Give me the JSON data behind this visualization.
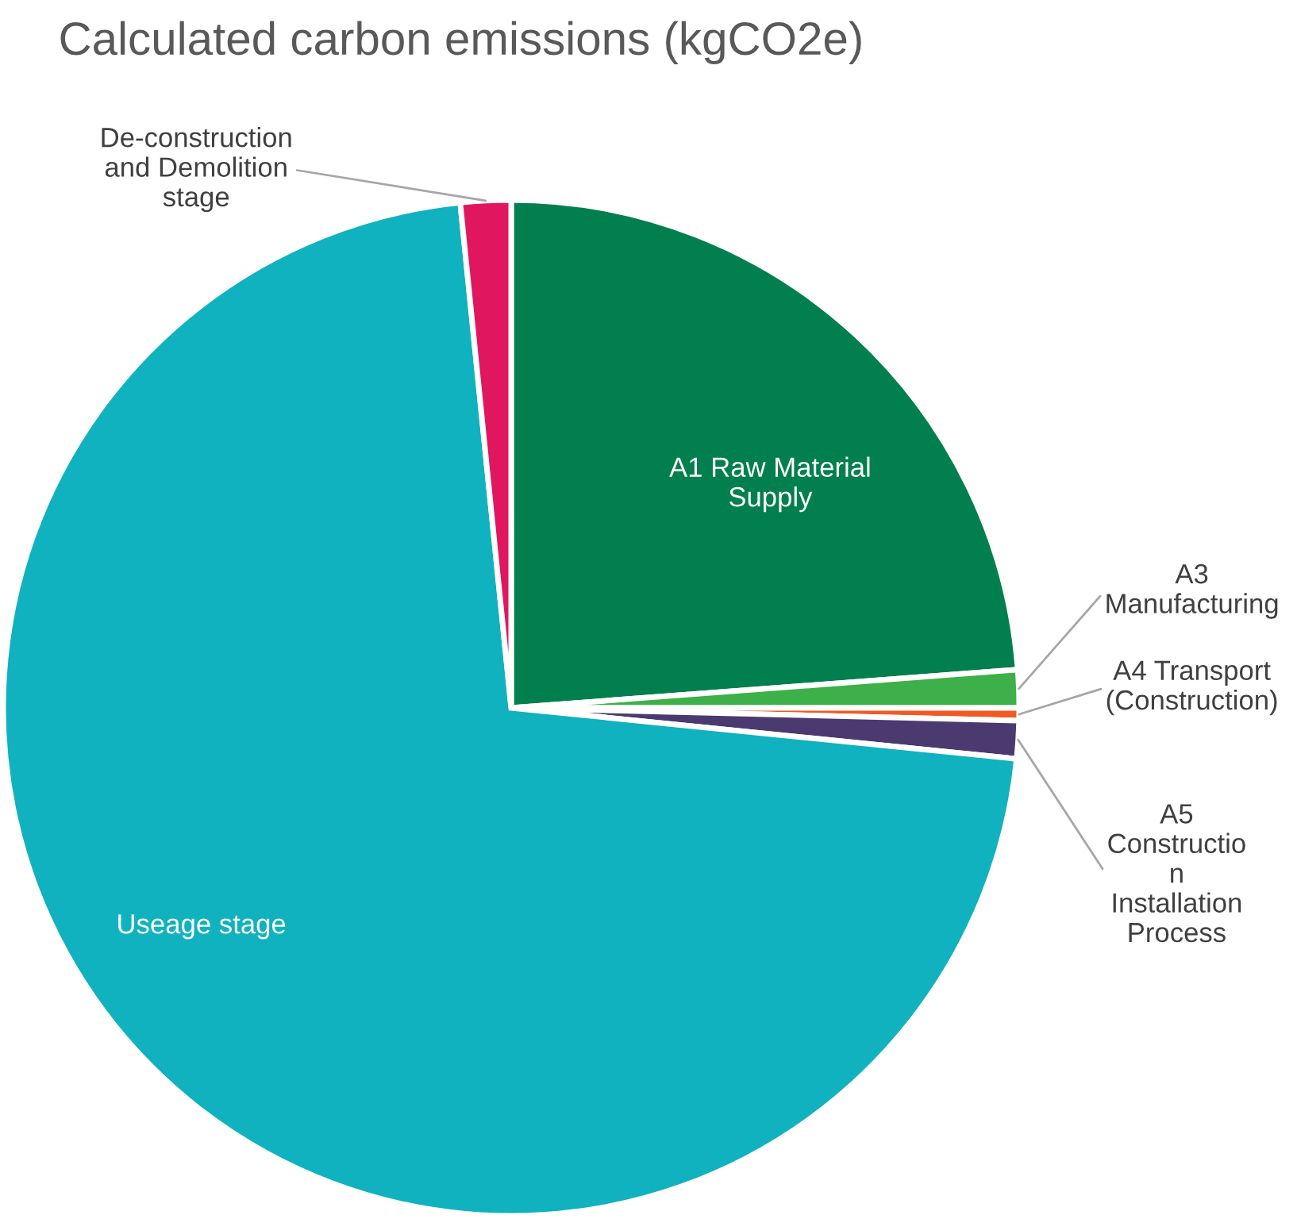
{
  "chart_data": {
    "type": "pie",
    "title": "Calculated carbon emissions (kgCO2e)",
    "categories": [
      "A1 Raw Material\nSupply",
      "A3\nManufacturing",
      "A4 Transport\n(Construction)",
      "A5\nConstructio\nn\nInstallation\nProcess",
      "Useage stage",
      "De-construction\nand Demolition\nstage"
    ],
    "values": [
      23.8,
      1.2,
      0.4,
      1.2,
      71.8,
      1.6
    ],
    "colors": [
      "#027f4f",
      "#3db049",
      "#f15a22",
      "#4b3a70",
      "#10b2bf",
      "#e0175e"
    ],
    "legend": false
  }
}
